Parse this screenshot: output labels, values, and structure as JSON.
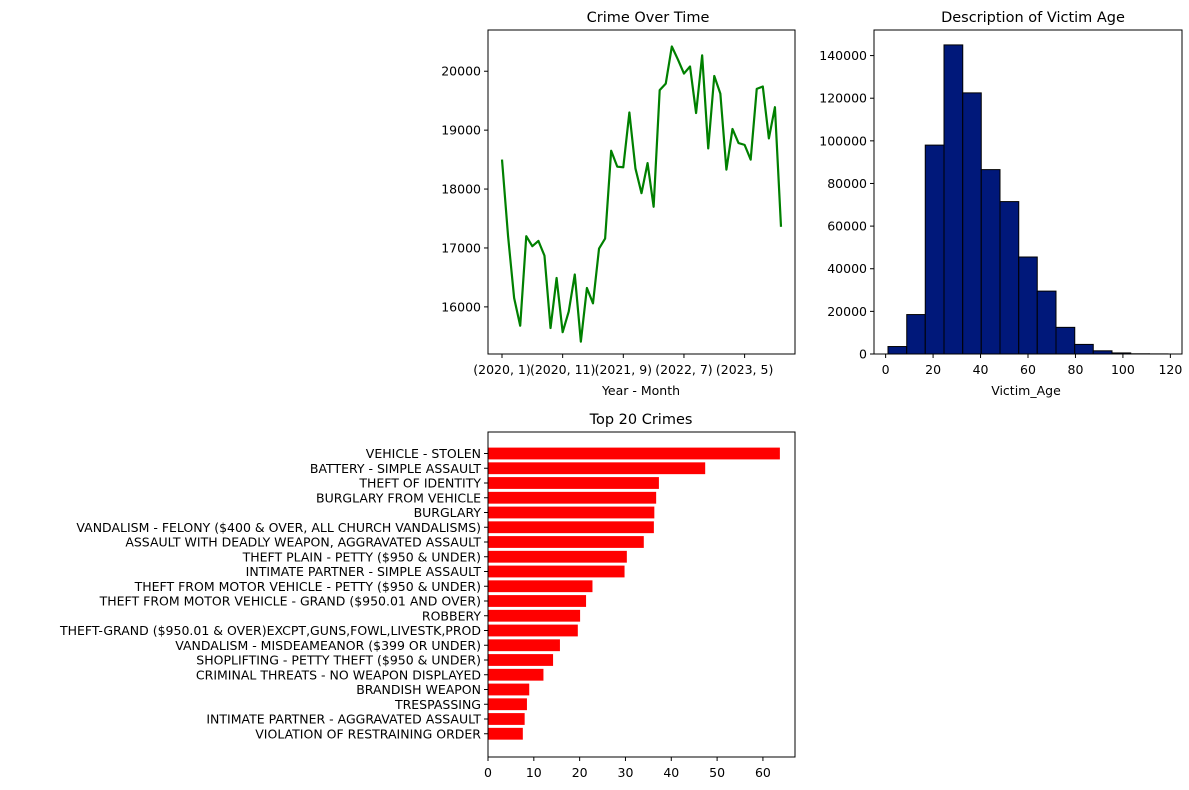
{
  "charts": [
    {
      "type": "line",
      "title": "Crime Over Time",
      "xlabel": "Year - Month",
      "ylabel": "",
      "color": "#008000",
      "x_tick_labels": [
        "(2020, 1)",
        "(2020, 11)",
        "(2021, 9)",
        "(2022, 7)",
        "(2023, 5)"
      ],
      "x_tick_indices": [
        0,
        10,
        20,
        30,
        40
      ],
      "ylim": [
        15200,
        20700
      ],
      "yticks": [
        16000,
        17000,
        18000,
        19000,
        20000
      ],
      "values": [
        18500,
        17200,
        16150,
        15680,
        17200,
        17030,
        17120,
        16870,
        15640,
        16490,
        15570,
        15920,
        16550,
        15410,
        16320,
        16060,
        16990,
        17160,
        18650,
        18380,
        18370,
        19300,
        18350,
        17930,
        18440,
        17700,
        19680,
        19790,
        20420,
        20200,
        19960,
        20080,
        19290,
        20270,
        18690,
        19920,
        19620,
        18330,
        19020,
        18780,
        18750,
        18500,
        19700,
        19740,
        18860,
        19390,
        17360
      ]
    },
    {
      "type": "bar",
      "subtype": "histogram",
      "title": "Description of Victim Age",
      "xlabel": "Victim_Age",
      "ylabel": "",
      "fill": "#00187a",
      "edge": "#000000",
      "bin_edges": [
        1,
        8.9,
        16.7,
        24.6,
        32.5,
        40.3,
        48.2,
        56.1,
        63.9,
        71.8,
        79.7,
        87.5,
        95.4,
        103.3,
        111.1,
        119
      ],
      "values": [
        3500,
        18500,
        98000,
        145000,
        122500,
        86500,
        71500,
        45500,
        29500,
        12500,
        4500,
        1500,
        500,
        100,
        50
      ],
      "xlim": [
        -4.9,
        124.9
      ],
      "ylim": [
        0,
        152000
      ],
      "xticks": [
        0,
        20,
        40,
        60,
        80,
        100,
        120
      ],
      "yticks": [
        0,
        20000,
        40000,
        60000,
        80000,
        100000,
        120000,
        140000
      ]
    },
    {
      "type": "bar",
      "orientation": "horizontal",
      "title": "Top 20 Crimes",
      "xlabel": "",
      "ylabel": "",
      "color": "#ff0000",
      "xlim": [
        0,
        67
      ],
      "xticks": [
        0,
        10,
        20,
        30,
        40,
        50,
        60
      ],
      "categories": [
        "VEHICLE - STOLEN",
        "BATTERY - SIMPLE ASSAULT",
        "THEFT OF IDENTITY",
        "BURGLARY FROM VEHICLE",
        "BURGLARY",
        "VANDALISM - FELONY ($400 & OVER, ALL CHURCH VANDALISMS)",
        "ASSAULT WITH DEADLY WEAPON, AGGRAVATED ASSAULT",
        "THEFT PLAIN - PETTY ($950 & UNDER)",
        "INTIMATE PARTNER - SIMPLE ASSAULT",
        "THEFT FROM MOTOR VEHICLE - PETTY ($950 & UNDER)",
        "THEFT FROM MOTOR VEHICLE - GRAND ($950.01 AND OVER)",
        "ROBBERY",
        "THEFT-GRAND ($950.01 & OVER)EXCPT,GUNS,FOWL,LIVESTK,PROD",
        "VANDALISM - MISDEAMEANOR ($399 OR UNDER)",
        "SHOPLIFTING - PETTY THEFT ($950 & UNDER)",
        "CRIMINAL THREATS - NO WEAPON DISPLAYED",
        "BRANDISH WEAPON",
        "TRESPASSING",
        "INTIMATE PARTNER - AGGRAVATED ASSAULT",
        "VIOLATION OF RESTRAINING ORDER"
      ],
      "values": [
        63.7,
        47.4,
        37.3,
        36.7,
        36.3,
        36.2,
        34.0,
        30.3,
        29.8,
        22.8,
        21.4,
        20.1,
        19.6,
        15.7,
        14.2,
        12.1,
        9.0,
        8.5,
        8.0,
        7.6
      ]
    }
  ],
  "chart_data": [
    {
      "type": "line",
      "title": "Crime Over Time",
      "xlabel": "Year - Month",
      "ylabel": "",
      "x_tick_labels": [
        "(2020, 1)",
        "(2020, 11)",
        "(2021, 9)",
        "(2022, 7)",
        "(2023, 5)"
      ],
      "ylim": [
        15200,
        20700
      ],
      "series": [
        {
          "values": [
            18500,
            17200,
            16150,
            15680,
            17200,
            17030,
            17120,
            16870,
            15640,
            16490,
            15570,
            15920,
            16550,
            15410,
            16320,
            16060,
            16990,
            17160,
            18650,
            18380,
            18370,
            19300,
            18350,
            17930,
            18440,
            17700,
            19680,
            19790,
            20420,
            20200,
            19960,
            20080,
            19290,
            20270,
            18690,
            19920,
            19620,
            18330,
            19020,
            18780,
            18750,
            18500,
            19700,
            19740,
            18860,
            19390,
            17360
          ]
        }
      ]
    },
    {
      "type": "bar",
      "title": "Description of Victim Age",
      "xlabel": "Victim_Age",
      "ylabel": "",
      "bin_edges": [
        1,
        8.9,
        16.7,
        24.6,
        32.5,
        40.3,
        48.2,
        56.1,
        63.9,
        71.8,
        79.7,
        87.5,
        95.4,
        103.3,
        111.1,
        119
      ],
      "values": [
        3500,
        18500,
        98000,
        145000,
        122500,
        86500,
        71500,
        45500,
        29500,
        12500,
        4500,
        1500,
        500,
        100,
        50
      ],
      "ylim": [
        0,
        152000
      ]
    },
    {
      "type": "bar",
      "title": "Top 20 Crimes",
      "xlabel": "",
      "ylabel": "",
      "xlim": [
        0,
        67
      ],
      "categories": [
        "VEHICLE - STOLEN",
        "BATTERY - SIMPLE ASSAULT",
        "THEFT OF IDENTITY",
        "BURGLARY FROM VEHICLE",
        "BURGLARY",
        "VANDALISM - FELONY ($400 & OVER, ALL CHURCH VANDALISMS)",
        "ASSAULT WITH DEADLY WEAPON, AGGRAVATED ASSAULT",
        "THEFT PLAIN - PETTY ($950 & UNDER)",
        "INTIMATE PARTNER - SIMPLE ASSAULT",
        "THEFT FROM MOTOR VEHICLE - PETTY ($950 & UNDER)",
        "THEFT FROM MOTOR VEHICLE - GRAND ($950.01 AND OVER)",
        "ROBBERY",
        "THEFT-GRAND ($950.01 & OVER)EXCPT,GUNS,FOWL,LIVESTK,PROD",
        "VANDALISM - MISDEAMEANOR ($399 OR UNDER)",
        "SHOPLIFTING - PETTY THEFT ($950 & UNDER)",
        "CRIMINAL THREATS - NO WEAPON DISPLAYED",
        "BRANDISH WEAPON",
        "TRESPASSING",
        "INTIMATE PARTNER - AGGRAVATED ASSAULT",
        "VIOLATION OF RESTRAINING ORDER"
      ],
      "values": [
        63.7,
        47.4,
        37.3,
        36.7,
        36.3,
        36.2,
        34.0,
        30.3,
        29.8,
        22.8,
        21.4,
        20.1,
        19.6,
        15.7,
        14.2,
        12.1,
        9.0,
        8.5,
        8.0,
        7.6
      ]
    }
  ]
}
